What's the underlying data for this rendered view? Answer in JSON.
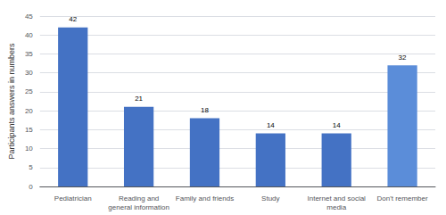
{
  "chart_data": {
    "type": "bar",
    "categories": [
      "Pediatrician",
      "Reading and\ngeneral information",
      "Family and friends",
      "Study",
      "Internet and social\nmedia",
      "Don't remember"
    ],
    "values": [
      42,
      21,
      18,
      14,
      14,
      32
    ],
    "colors": [
      "#4472C4",
      "#4472C4",
      "#4472C4",
      "#4472C4",
      "#4472C4",
      "#5B8DD9"
    ],
    "ylabel": "Participants answers in numbers",
    "ylim": [
      0,
      45
    ],
    "yticks": [
      0,
      5,
      10,
      15,
      20,
      25,
      30,
      35,
      40,
      45
    ],
    "grid": true,
    "data_labels": true
  }
}
